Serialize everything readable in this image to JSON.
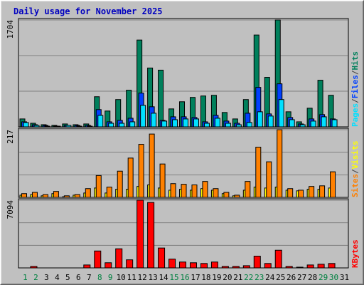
{
  "chart_data": {
    "type": "bar",
    "title": "Daily usage for November 2025",
    "categories": [
      "1",
      "2",
      "3",
      "4",
      "5",
      "6",
      "7",
      "8",
      "9",
      "10",
      "11",
      "12",
      "13",
      "14",
      "15",
      "16",
      "17",
      "18",
      "19",
      "20",
      "21",
      "22",
      "23",
      "24",
      "25",
      "26",
      "27",
      "28",
      "29",
      "30",
      "31"
    ],
    "category_colors": [
      "#008040",
      "#008040",
      "#000000",
      "#000000",
      "#000000",
      "#000000",
      "#000000",
      "#008040",
      "#008040",
      "#000000",
      "#000000",
      "#000000",
      "#000000",
      "#000000",
      "#008040",
      "#008040",
      "#000000",
      "#000000",
      "#000000",
      "#000000",
      "#000000",
      "#008040",
      "#008040",
      "#000000",
      "#000000",
      "#000000",
      "#000000",
      "#000000",
      "#008040",
      "#008040",
      "#000000"
    ],
    "separator": "/",
    "grid": true,
    "panels": [
      {
        "ylim": [
          0,
          1704
        ],
        "yticks": [
          {
            "value": 568,
            "label": null
          },
          {
            "value": 1136,
            "label": null
          },
          1704
        ],
        "series": [
          {
            "name": "Pages",
            "color": "#00e0ff",
            "values": [
              69,
              23,
              11,
              11,
              23,
              11,
              11,
              183,
              57,
              57,
              80,
              343,
              217,
              92,
              114,
              126,
              126,
              57,
              137,
              57,
              34,
              69,
              240,
              172,
              435,
              114,
              34,
              92,
              160,
              114,
              0
            ]
          },
          {
            "name": "Files",
            "color": "#0040ff",
            "values": [
              80,
              34,
              23,
              11,
              23,
              23,
              23,
              275,
              80,
              103,
              137,
              538,
              320,
              103,
              160,
              160,
              149,
              80,
              183,
              92,
              57,
              217,
              629,
              206,
              686,
              149,
              46,
              126,
              195,
              126,
              0
            ]
          },
          {
            "name": "Hits",
            "color": "#00805c",
            "values": [
              126,
              57,
              34,
              23,
              46,
              34,
              46,
              480,
              252,
              435,
              584,
              1384,
              938,
              904,
              286,
              400,
              469,
              492,
              503,
              229,
              126,
              435,
              1464,
              789,
              1704,
              240,
              80,
              297,
              743,
              503,
              0
            ]
          }
        ]
      },
      {
        "ylim": [
          0,
          217
        ],
        "yticks": [
          {
            "value": 72,
            "label": null
          },
          {
            "value": 145,
            "label": null
          },
          217
        ],
        "series": [
          {
            "name": "Sites",
            "color": "#ff8000",
            "values": [
              12,
              16,
              9,
              19,
              5,
              9,
              28,
              70,
              33,
              84,
              126,
              170,
              203,
              107,
              44,
              42,
              40,
              51,
              28,
              16,
              7,
              51,
              161,
              114,
              217,
              28,
              23,
              35,
              37,
              82,
              0
            ]
          },
          {
            "name": "Visits",
            "color": "#ffff00",
            "values": [
              7,
              9,
              5,
              12,
              2,
              7,
              14,
              30,
              14,
              26,
              26,
              35,
              40,
              30,
              23,
              26,
              23,
              28,
              23,
              12,
              5,
              23,
              33,
              30,
              33,
              23,
              21,
              26,
              26,
              30,
              0
            ]
          }
        ]
      },
      {
        "ylim": [
          0,
          7094
        ],
        "yticks": [
          {
            "value": 2365,
            "label": null
          },
          {
            "value": 4729,
            "label": null
          },
          7094
        ],
        "series": [
          {
            "name": "KBytes",
            "color": "#ff0000",
            "values": [
              0,
              154,
              0,
              0,
              0,
              0,
              308,
              1773,
              540,
              2005,
              848,
              7094,
              6862,
              2082,
              925,
              617,
              540,
              463,
              617,
              154,
              154,
              231,
              1234,
              463,
              1850,
              154,
              77,
              308,
              386,
              463,
              0
            ]
          }
        ]
      }
    ]
  }
}
